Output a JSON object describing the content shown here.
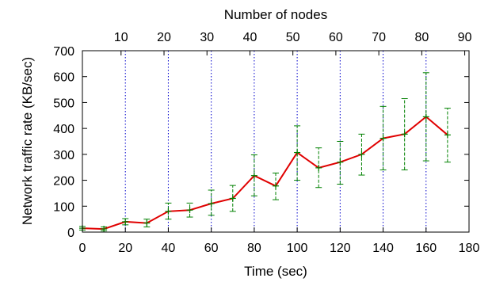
{
  "chart_data": {
    "type": "line",
    "title": "",
    "xlabel": "Time (sec)",
    "ylabel": "Network traffic rate (KB/sec)",
    "x2label": "Number of nodes",
    "xlim": [
      0,
      180
    ],
    "ylim": [
      0,
      700
    ],
    "x_ticks": [
      0,
      20,
      40,
      60,
      80,
      100,
      120,
      140,
      160,
      180
    ],
    "y_ticks": [
      0,
      100,
      200,
      300,
      400,
      500,
      600,
      700
    ],
    "x2_ticks": [
      {
        "label": "10",
        "x": 18
      },
      {
        "label": "20",
        "x": 38
      },
      {
        "label": "30",
        "x": 58
      },
      {
        "label": "40",
        "x": 78
      },
      {
        "label": "50",
        "x": 98
      },
      {
        "label": "60",
        "x": 118
      },
      {
        "label": "70",
        "x": 138
      },
      {
        "label": "80",
        "x": 158
      },
      {
        "label": "90",
        "x": 178
      }
    ],
    "vlines_x": [
      20,
      40,
      60,
      80,
      100,
      120,
      140,
      160
    ],
    "grid": false,
    "series": [
      {
        "color": "#e00000",
        "error_color": "#008000",
        "vline_color": "#0000cc",
        "x": [
          0,
          10,
          20,
          30,
          40,
          50,
          60,
          70,
          80,
          90,
          100,
          110,
          120,
          130,
          140,
          150,
          160,
          170
        ],
        "y": [
          15,
          12,
          40,
          35,
          80,
          85,
          110,
          130,
          218,
          178,
          307,
          248,
          270,
          300,
          362,
          378,
          445,
          375
        ],
        "err_low": [
          8,
          5,
          28,
          20,
          50,
          58,
          65,
          80,
          140,
          125,
          200,
          172,
          185,
          220,
          240,
          240,
          275,
          270
        ],
        "err_high": [
          22,
          20,
          52,
          50,
          112,
          112,
          162,
          180,
          298,
          228,
          410,
          325,
          350,
          378,
          485,
          515,
          615,
          478
        ]
      }
    ]
  }
}
